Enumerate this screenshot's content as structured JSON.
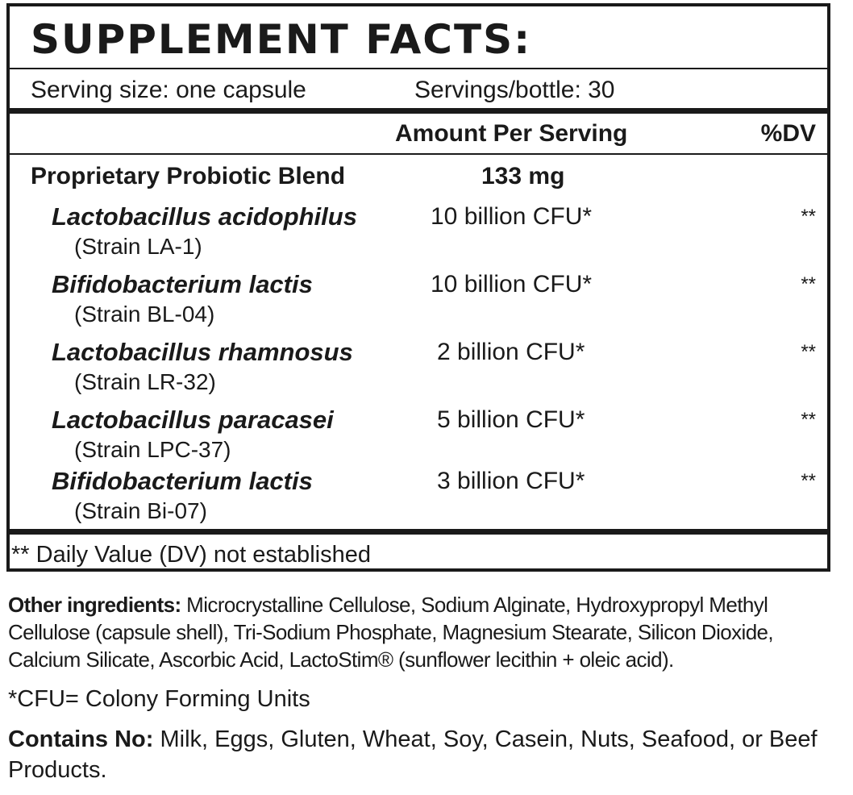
{
  "label": {
    "title": "SUPPLEMENT FACTS:",
    "serving_size": "Serving size: one capsule",
    "servings_per": "Servings/bottle: 30",
    "header_amount": "Amount Per Serving",
    "header_dv": "%DV",
    "blend_name": "Proprietary Probiotic Blend",
    "blend_amount": "133 mg",
    "ingredients": [
      {
        "name": "Lactobacillus acidophilus",
        "strain": "(Strain LA-1)",
        "amount": "10 billion CFU*",
        "dv": "**"
      },
      {
        "name": "Bifidobacterium lactis",
        "strain": "(Strain BL-04)",
        "amount": "10 billion CFU*",
        "dv": "**"
      },
      {
        "name": "Lactobacillus rhamnosus",
        "strain": "(Strain LR-32)",
        "amount": "2 billion CFU*",
        "dv": "**"
      },
      {
        "name": "Lactobacillus paracasei",
        "strain": "(Strain LPC-37)",
        "amount": "5 billion CFU*",
        "dv": "**"
      },
      {
        "name": "Bifidobacterium lactis",
        "strain": "(Strain Bi-07)",
        "amount": "3 billion CFU*",
        "dv": "**"
      }
    ],
    "dv_note": "** Daily Value (DV) not established"
  },
  "footer": {
    "other_label": "Other ingredients:",
    "other_text": " Microcrystalline Cellulose, Sodium Alginate, Hydroxypropyl Methyl Cellulose (capsule shell), Tri-Sodium Phosphate, Magnesium Stearate, Silicon Dioxide, Calcium Silicate, Ascorbic Acid, LactoStim® (sunflower lecithin + oleic acid).",
    "cfu_note": "*CFU= Colony Forming Units",
    "contains_label": "Contains No:",
    "contains_text": " Milk, Eggs, Gluten, Wheat, Soy, Casein, Nuts, Seafood, or Beef Products."
  }
}
